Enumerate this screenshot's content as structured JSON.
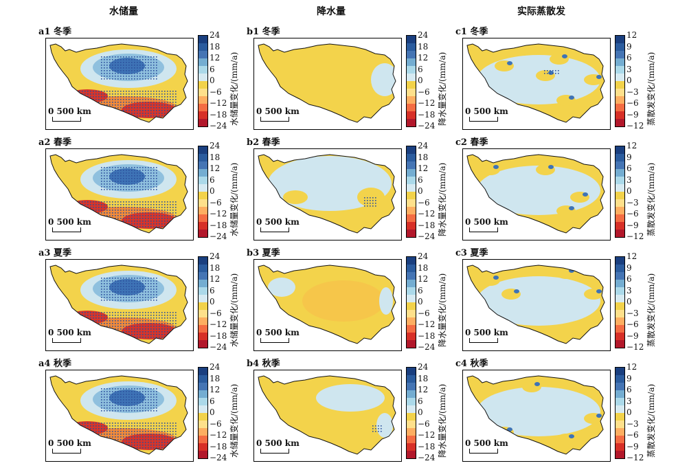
{
  "column_titles": [
    "水储量",
    "降水量",
    "实际蒸散发"
  ],
  "scale_bar_label": "0  500 km",
  "colors": {
    "scale": [
      "#b2182b",
      "#d73027",
      "#f46d43",
      "#fdae61",
      "#fee08b",
      "#f2d24a",
      "#d6eaf2",
      "#abd9e9",
      "#74add1",
      "#4575b4",
      "#2b5c9e",
      "#1a3f7f"
    ],
    "land_neutral": "#f3d34b",
    "land_blue_light": "#cfe6ef",
    "land_blue_mid": "#8fc0de",
    "land_blue_dark": "#3e73b6",
    "land_red": "#d7352a",
    "land_orange": "#f28b3a",
    "stipple": "#2c4f9c"
  },
  "rows": [
    {
      "season": "冬季",
      "panels": [
        {
          "label": "a1 冬季",
          "pattern": "tws"
        },
        {
          "label": "b1 冬季",
          "pattern": "pre_winter"
        },
        {
          "label": "c1 冬季",
          "pattern": "et_winter"
        }
      ]
    },
    {
      "season": "春季",
      "panels": [
        {
          "label": "a2 春季",
          "pattern": "tws"
        },
        {
          "label": "b2 春季",
          "pattern": "pre_spring"
        },
        {
          "label": "c2 春季",
          "pattern": "et_spring"
        }
      ]
    },
    {
      "season": "夏季",
      "panels": [
        {
          "label": "a3 夏季",
          "pattern": "tws"
        },
        {
          "label": "b3 夏季",
          "pattern": "pre_summer"
        },
        {
          "label": "c3 夏季",
          "pattern": "et_summer"
        }
      ]
    },
    {
      "season": "秋季",
      "panels": [
        {
          "label": "a4 秋季",
          "pattern": "tws_autumn"
        },
        {
          "label": "b4 秋季",
          "pattern": "pre_autumn"
        },
        {
          "label": "c4 秋季",
          "pattern": "et_autumn"
        }
      ]
    }
  ],
  "colorbars": [
    {
      "label": "水储量变化/(mm/a)",
      "ticks": [
        "24",
        "18",
        "12",
        "6",
        "0",
        "−6",
        "−12",
        "−18",
        "−24"
      ]
    },
    {
      "label": "降水量变化/(mm/a)",
      "ticks": [
        "24",
        "18",
        "12",
        "6",
        "0",
        "−6",
        "−12",
        "−18",
        "−24"
      ]
    },
    {
      "label": "蒸散发变化/(mm/a)",
      "ticks": [
        "12",
        "9",
        "6",
        "3",
        "0",
        "−3",
        "−6",
        "−9",
        "−12"
      ]
    }
  ],
  "chart_data": {
    "type": "heatmap",
    "panels_grid": "4 rows (冬季, 春季, 夏季, 秋季) × 3 columns (水储量, 降水量, 实际蒸散发)",
    "colorbar_ranges": {
      "水储量变化/(mm/a)": [
        -24,
        24
      ],
      "降水量变化/(mm/a)": [
        -24,
        24
      ],
      "蒸散发变化/(mm/a)": [
        -12,
        12
      ]
    }
  }
}
